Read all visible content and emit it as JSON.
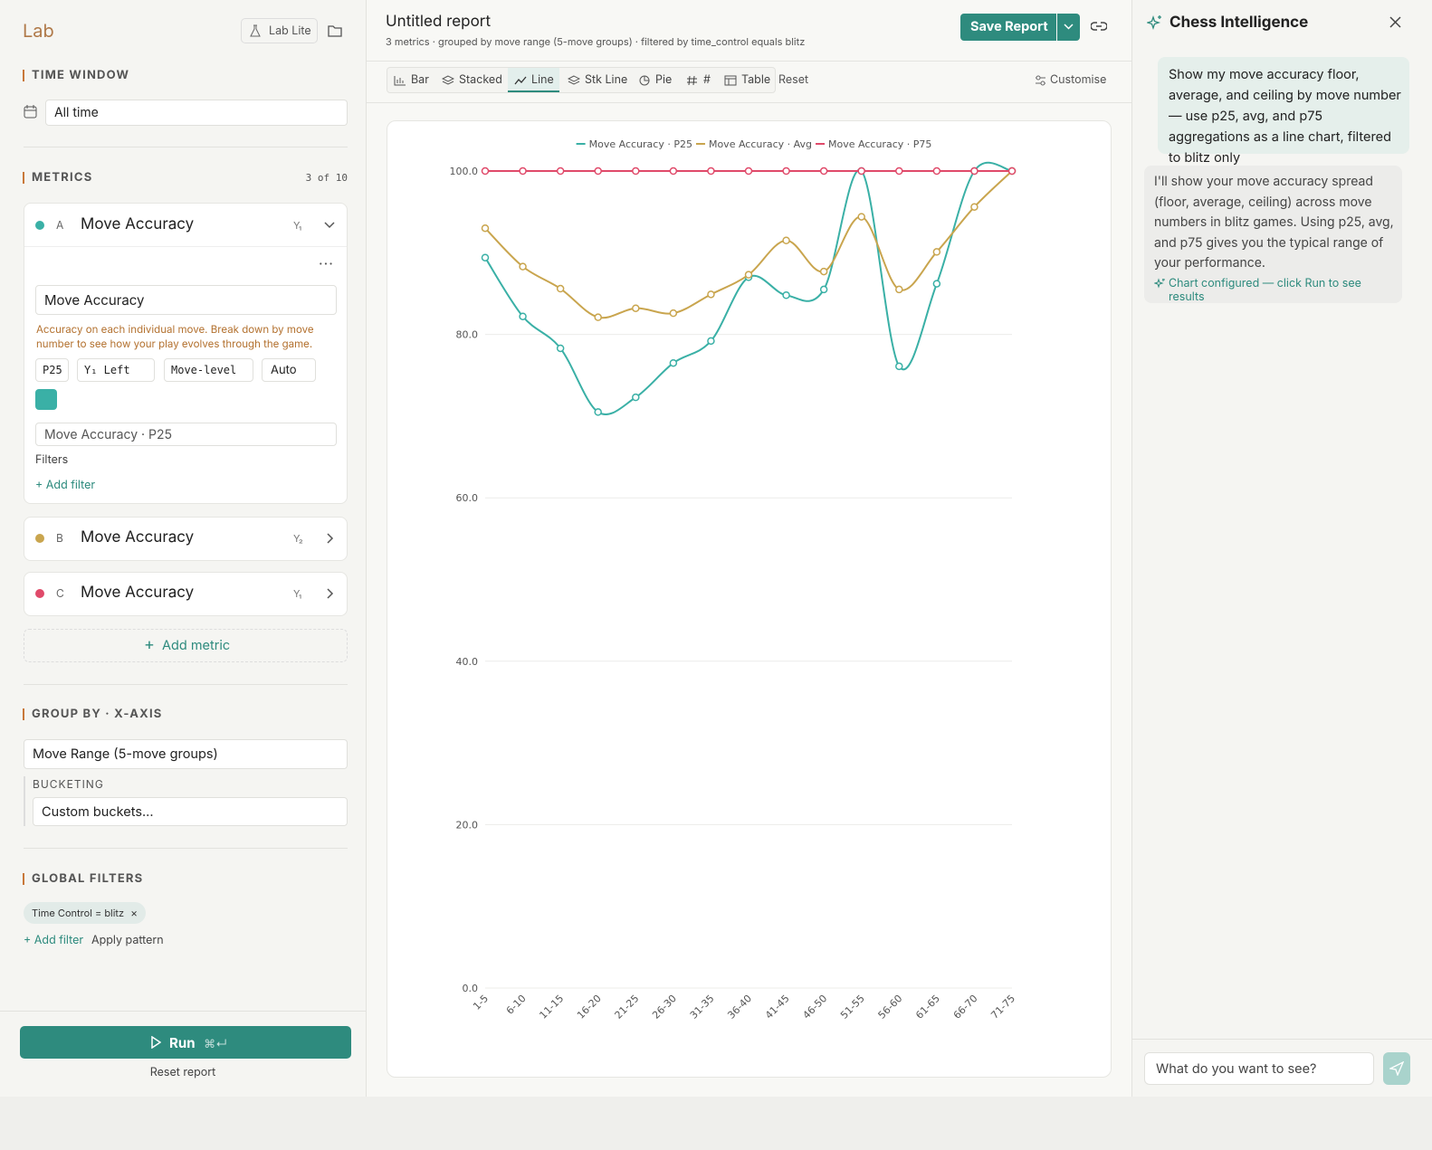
{
  "sidebar": {
    "brand": "Lab",
    "lab_lite": "Lab Lite",
    "time_window": {
      "title": "TIME WINDOW",
      "value": "All time"
    },
    "metrics": {
      "title": "METRICS",
      "count": "3 of 10",
      "items": [
        {
          "letter": "A",
          "name": "Move Accuracy",
          "axis": "Y₁"
        },
        {
          "letter": "B",
          "name": "Move Accuracy",
          "axis": "Y₂"
        },
        {
          "letter": "C",
          "name": "Move Accuracy",
          "axis": "Y₁"
        }
      ],
      "detail": {
        "name_input": "Move Accuracy",
        "description": "Accuracy on each individual move. Break down by move number to see how your play evolves through the game.",
        "aggregation": "P25",
        "axis_select": "Y₁ Left",
        "level": "Move-level",
        "mode": "Auto",
        "label_input": "Move Accuracy · P25",
        "filters": "Filters",
        "add_filter": "+ Add filter"
      },
      "add_metric": "Add metric"
    },
    "group_by": {
      "title": "GROUP BY · X-AXIS",
      "value": "Move Range (5-move groups)",
      "bucketing_label": "BUCKETING",
      "bucketing_value": "Custom buckets..."
    },
    "global_filters": {
      "title": "GLOBAL FILTERS",
      "chip": "Time Control = blitz",
      "add_filter": "+ Add filter",
      "apply_pattern": "Apply pattern"
    },
    "run": {
      "label": "Run",
      "shortcut": "⌘↵"
    },
    "reset": "Reset report"
  },
  "report": {
    "title": "Untitled report",
    "subtitle": "3 metrics · grouped by move range (5-move groups) · filtered by time_control equals blitz",
    "save": "Save Report",
    "tabs": [
      "Bar",
      "Stacked",
      "Line",
      "Stk Line",
      "Pie",
      "#",
      "Table"
    ],
    "reset": "Reset",
    "customise": "Customise"
  },
  "assistant": {
    "title": "Chess Intelligence",
    "user_message": "Show my move accuracy floor, average, and ceiling by move number — use p25, avg, and p75 aggregations as a line chart, filtered to blitz only",
    "reply": "I'll show your move accuracy spread (floor, average, ceiling) across move numbers in blitz games. Using p25, avg, and p75 gives you the typical range of your performance.",
    "status": "Chart configured — click Run to see results",
    "input_placeholder": "What do you want to see?"
  },
  "chart_data": {
    "type": "line",
    "categories": [
      "1-5",
      "6-10",
      "11-15",
      "16-20",
      "21-25",
      "26-30",
      "31-35",
      "36-40",
      "41-45",
      "46-50",
      "51-55",
      "56-60",
      "61-65",
      "66-70",
      "71-75"
    ],
    "series": [
      {
        "name": "Move Accuracy · P25",
        "color": "#3ab0a6",
        "values": [
          89.4,
          82.2,
          78.3,
          70.5,
          72.3,
          76.5,
          79.2,
          87.0,
          84.8,
          85.5,
          100,
          76.1,
          86.2,
          100,
          100
        ]
      },
      {
        "name": "Move Accuracy · Avg",
        "color": "#c9a54e",
        "values": [
          93.0,
          88.3,
          85.6,
          82.1,
          83.2,
          82.6,
          84.9,
          87.3,
          91.5,
          87.7,
          94.4,
          85.5,
          90.1,
          95.6,
          100
        ]
      },
      {
        "name": "Move Accuracy · P75",
        "color": "#e04a6a",
        "values": [
          100,
          100,
          100,
          100,
          100,
          100,
          100,
          100,
          100,
          100,
          100,
          100,
          100,
          100,
          100
        ]
      }
    ],
    "ylim": [
      0,
      100
    ],
    "yticks": [
      {
        "value": 0,
        "label": "0.0"
      },
      {
        "value": 20,
        "label": "20.0"
      },
      {
        "value": 40,
        "label": "40.0"
      },
      {
        "value": 60,
        "label": "60.0"
      },
      {
        "value": 80,
        "label": "80.0"
      },
      {
        "value": 100,
        "label": "100.0"
      }
    ],
    "grid": true
  }
}
